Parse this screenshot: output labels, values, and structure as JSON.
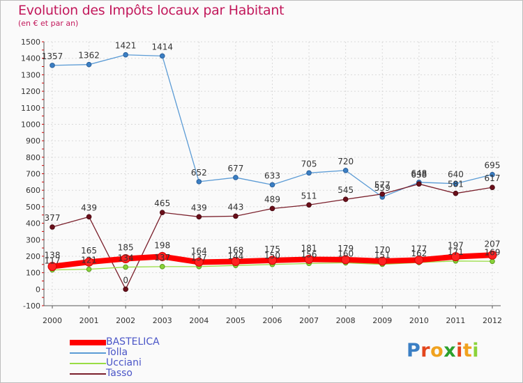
{
  "chart_data": {
    "type": "line",
    "title": "Evolution des Impôts locaux par Habitant",
    "subtitle": "(en € et par an)",
    "xlabel": "",
    "ylabel": "",
    "ylim": [
      -100,
      1500
    ],
    "yticks": [
      -100,
      0,
      100,
      200,
      300,
      400,
      500,
      600,
      700,
      800,
      900,
      1000,
      1100,
      1200,
      1300,
      1400,
      1500
    ],
    "categories": [
      "2000",
      "2001",
      "2002",
      "2003",
      "2004",
      "2005",
      "2006",
      "2007",
      "2008",
      "2009",
      "2010",
      "2011",
      "2012"
    ],
    "grid": true,
    "series": [
      {
        "name": "BASTELICA",
        "color": "#ff0000",
        "values": [
          138,
          165,
          185,
          198,
          164,
          168,
          175,
          181,
          179,
          170,
          177,
          197,
          207
        ]
      },
      {
        "name": "Tolla",
        "color": "#5b9bd5",
        "values": [
          1357,
          1362,
          1421,
          1414,
          652,
          677,
          633,
          705,
          720,
          559,
          648,
          640,
          695
        ]
      },
      {
        "name": "Ucciani",
        "color": "#99dd44",
        "values": [
          117,
          121,
          134,
          137,
          137,
          144,
          150,
          156,
          160,
          151,
          162,
          171,
          169
        ]
      },
      {
        "name": "Tasso",
        "color": "#7a1f2b",
        "values": [
          377,
          439,
          0,
          465,
          439,
          443,
          489,
          511,
          545,
          577,
          638,
          581,
          617
        ]
      }
    ]
  },
  "logo": {
    "text": "Proxiti"
  }
}
